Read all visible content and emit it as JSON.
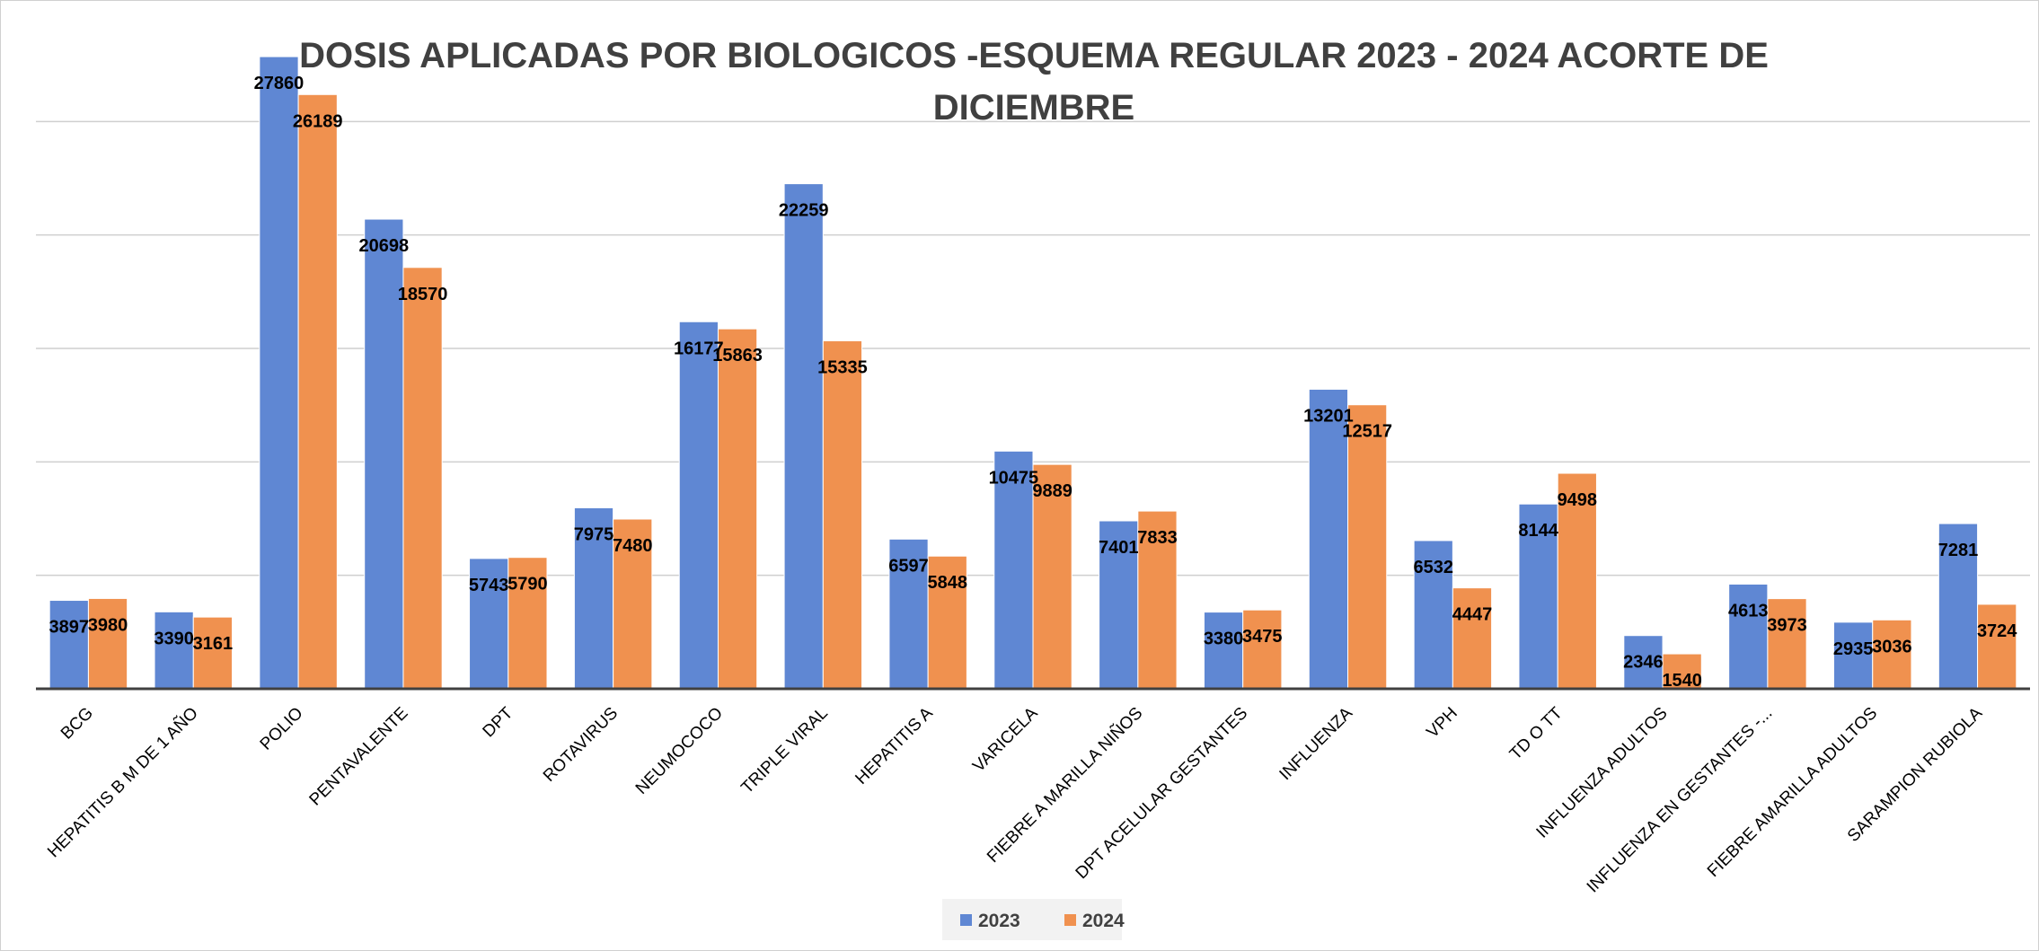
{
  "chart_data": {
    "type": "bar",
    "title": "DOSIS APLICADAS POR BIOLOGICOS -ESQUEMA REGULAR 2023 - 2024 ACORTE DE DICIEMBRE",
    "categories": [
      "BCG",
      "HEPATITIS B M DE 1 AÑO",
      "POLIO",
      "PENTAVALENTE",
      "DPT",
      "ROTAVIRUS",
      "NEUMOCOCO",
      "TRIPLE VIRAL",
      "HEPATITIS A",
      "VARICELA",
      "FIEBRE A MARILLA  NIÑOS",
      "DPT ACELULAR  GESTANTES",
      "INFLUENZA",
      "VPH",
      "TD O TT",
      "INFLUENZA ADULTOS",
      "INFLUENZA EN GESTANTES -...",
      "FIEBRE AMARILLA  ADULTOS",
      "SARAMPION RUBIOLA"
    ],
    "series": [
      {
        "name": "2023",
        "color": "#5f87d3",
        "values": [
          3897,
          3390,
          27860,
          20698,
          5743,
          7975,
          16177,
          22259,
          6597,
          10475,
          7401,
          3380,
          13201,
          6532,
          8144,
          2346,
          4613,
          2935,
          7281
        ]
      },
      {
        "name": "2024",
        "color": "#f0914f",
        "values": [
          3980,
          3161,
          26189,
          18570,
          5790,
          7480,
          15863,
          15335,
          5848,
          9889,
          7833,
          3475,
          12517,
          4447,
          9498,
          1540,
          3973,
          3036,
          3724
        ]
      }
    ],
    "ylim": [
      0,
      30000
    ],
    "yticks": [
      0,
      5000,
      10000,
      15000,
      20000,
      25000
    ],
    "grid": true,
    "legend": "bottom"
  }
}
